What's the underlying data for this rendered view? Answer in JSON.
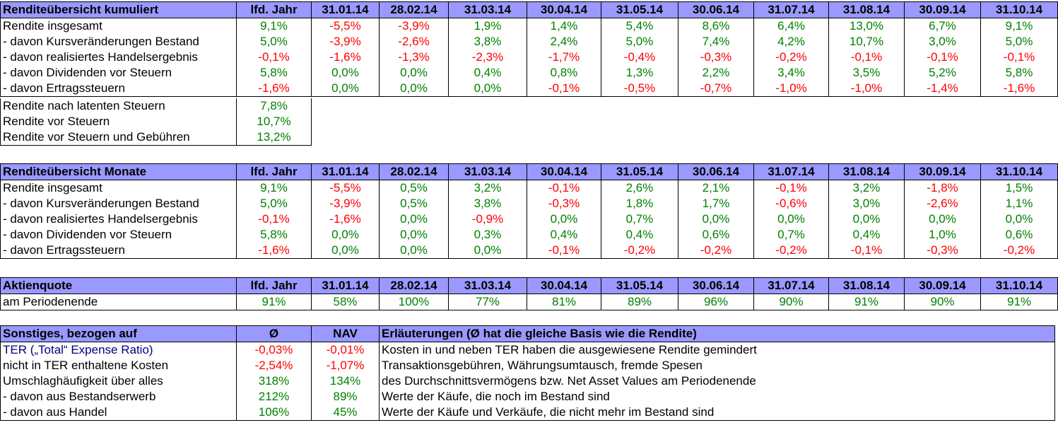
{
  "colors": {
    "header_bg": "#9999ff",
    "positive": "#008000",
    "negative": "#ff0000",
    "link": "#000080"
  },
  "kumuliert": {
    "title": "Renditeübersicht kumuliert",
    "columns": [
      "lfd. Jahr",
      "31.01.14",
      "28.02.14",
      "31.03.14",
      "30.04.14",
      "31.05.14",
      "30.06.14",
      "31.07.14",
      "31.08.14",
      "30.09.14",
      "31.10.14"
    ],
    "rows": [
      {
        "label": "Rendite insgesamt",
        "values": [
          "9,1%",
          "-5,5%",
          "-3,9%",
          "1,9%",
          "1,4%",
          "5,4%",
          "8,6%",
          "6,4%",
          "13,0%",
          "6,7%",
          "9,1%"
        ]
      },
      {
        "label": "- davon Kursveränderungen Bestand",
        "values": [
          "5,0%",
          "-3,9%",
          "-2,6%",
          "3,8%",
          "2,4%",
          "5,0%",
          "7,4%",
          "4,2%",
          "10,7%",
          "3,0%",
          "5,0%"
        ]
      },
      {
        "label": "- davon realisiertes Handelsergebnis",
        "values": [
          "-0,1%",
          "-1,6%",
          "-1,3%",
          "-2,3%",
          "-1,7%",
          "-0,4%",
          "-0,3%",
          "-0,2%",
          "-0,1%",
          "-0,1%",
          "-0,1%"
        ]
      },
      {
        "label": "- davon Dividenden vor Steuern",
        "values": [
          "5,8%",
          "0,0%",
          "0,0%",
          "0,4%",
          "0,8%",
          "1,3%",
          "2,2%",
          "3,4%",
          "3,5%",
          "5,2%",
          "5,8%"
        ]
      },
      {
        "label": "- davon Ertragssteuern",
        "values": [
          "-1,6%",
          "0,0%",
          "0,0%",
          "0,0%",
          "-0,1%",
          "-0,5%",
          "-0,7%",
          "-1,0%",
          "-1,0%",
          "-1,4%",
          "-1,6%"
        ]
      }
    ],
    "extra": [
      {
        "label": "Rendite nach latenten Steuern",
        "value": "7,8%"
      },
      {
        "label": "Rendite vor Steuern",
        "value": "10,7%"
      },
      {
        "label": "Rendite vor Steuern und Gebühren",
        "value": "13,2%"
      }
    ]
  },
  "monate": {
    "title": "Renditeübersicht Monate",
    "columns": [
      "lfd. Jahr",
      "31.01.14",
      "28.02.14",
      "31.03.14",
      "30.04.14",
      "31.05.14",
      "30.06.14",
      "31.07.14",
      "31.08.14",
      "30.09.14",
      "31.10.14"
    ],
    "rows": [
      {
        "label": "Rendite insgesamt",
        "values": [
          "9,1%",
          "-5,5%",
          "0,5%",
          "3,2%",
          "-0,1%",
          "2,6%",
          "2,1%",
          "-0,1%",
          "3,2%",
          "-1,8%",
          "1,5%"
        ]
      },
      {
        "label": "- davon Kursveränderungen Bestand",
        "values": [
          "5,0%",
          "-3,9%",
          "0,5%",
          "3,8%",
          "-0,3%",
          "1,8%",
          "1,7%",
          "-0,6%",
          "3,0%",
          "-2,6%",
          "1,1%"
        ]
      },
      {
        "label": "- davon realisiertes Handelsergebnis",
        "values": [
          "-0,1%",
          "-1,6%",
          "0,0%",
          "-0,9%",
          "0,0%",
          "0,7%",
          "0,0%",
          "0,0%",
          "0,0%",
          "0,0%",
          "0,0%"
        ]
      },
      {
        "label": "- davon Dividenden vor Steuern",
        "values": [
          "5,8%",
          "0,0%",
          "0,0%",
          "0,3%",
          "0,4%",
          "0,4%",
          "0,6%",
          "0,7%",
          "0,4%",
          "1,0%",
          "0,6%"
        ]
      },
      {
        "label": "- davon Ertragssteuern",
        "values": [
          "-1,6%",
          "0,0%",
          "0,0%",
          "0,0%",
          "-0,1%",
          "-0,2%",
          "-0,2%",
          "-0,2%",
          "-0,1%",
          "-0,3%",
          "-0,2%"
        ]
      }
    ]
  },
  "aktienquote": {
    "title": "Aktienquote",
    "columns": [
      "lfd. Jahr",
      "31.01.14",
      "28.02.14",
      "31.03.14",
      "30.04.14",
      "31.05.14",
      "30.06.14",
      "31.07.14",
      "31.08.14",
      "30.09.14",
      "31.10.14"
    ],
    "row": {
      "label": "am Periodenende",
      "values": [
        "91%",
        "58%",
        "100%",
        "77%",
        "81%",
        "89%",
        "96%",
        "90%",
        "91%",
        "90%",
        "91%"
      ]
    }
  },
  "sonstiges": {
    "title": "Sonstiges, bezogen auf",
    "col_avg": "Ø",
    "col_nav": "NAV",
    "col_expl": "Erläuterungen (Ø hat die gleiche Basis wie die Rendite)",
    "rows": [
      {
        "label": "TER („Total“ Expense Ratio)",
        "avg": "-0,03%",
        "nav": "-0,01%",
        "expl": "Kosten in und neben TER haben die ausgewiesene Rendite gemindert"
      },
      {
        "label": "nicht in TER enthaltene Kosten",
        "avg": "-2,54%",
        "nav": "-1,07%",
        "expl": "Transaktionsgebühren, Währungsumtausch, fremde Spesen"
      },
      {
        "label": "Umschlaghäufigkeit über alles",
        "avg": "318%",
        "nav": "134%",
        "expl": "des Durchschnittsvermögens bzw. Net Asset Values am Periodenende"
      },
      {
        "label": "- davon aus Bestandserwerb",
        "avg": "212%",
        "nav": "89%",
        "expl": "Werte der Käufe, die noch im Bestand sind"
      },
      {
        "label": "- davon aus Handel",
        "avg": "106%",
        "nav": "45%",
        "expl": "Werte der Käufe und Verkäufe, die nicht mehr im Bestand sind"
      }
    ]
  }
}
